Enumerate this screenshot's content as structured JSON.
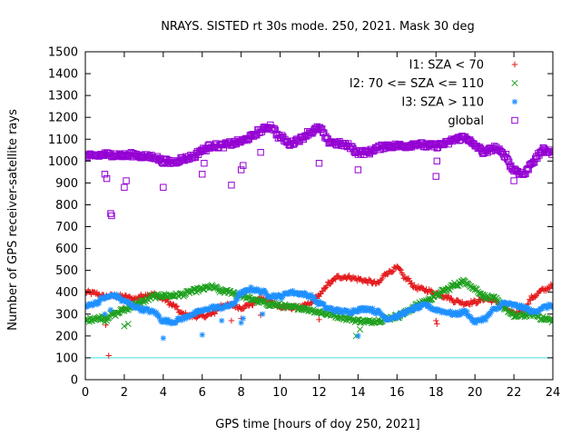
{
  "chart_data": {
    "type": "scatter",
    "title": "NRAYS. SISTED rt 30s mode. 250, 2021. Mask 30 deg",
    "xlabel": "GPS time [hours of doy 250, 2021]",
    "ylabel": "Number of GPS receiver-satellite rays",
    "xlim": [
      0,
      24
    ],
    "ylim": [
      0,
      1500
    ],
    "x_ticks": [
      "0",
      "2",
      "4",
      "6",
      "8",
      "10",
      "12",
      "14",
      "16",
      "18",
      "20",
      "22",
      "24"
    ],
    "y_ticks": [
      "0",
      "100",
      "200",
      "300",
      "400",
      "500",
      "600",
      "700",
      "800",
      "900",
      "1000",
      "1100",
      "1200",
      "1300",
      "1400",
      "1500"
    ],
    "x_tick_values": [
      0,
      2,
      4,
      6,
      8,
      10,
      12,
      14,
      16,
      18,
      20,
      22,
      24
    ],
    "y_tick_values": [
      0,
      100,
      200,
      300,
      400,
      500,
      600,
      700,
      800,
      900,
      1000,
      1100,
      1200,
      1300,
      1400,
      1500
    ],
    "reference_line": {
      "y": 100,
      "color": "#40e0e0"
    },
    "legend_position": "top-right",
    "series": [
      {
        "name": "I1: SZA < 70",
        "marker": "plus",
        "color": "#e41a1c",
        "x": [
          0,
          0.5,
          1,
          1.5,
          2,
          2.5,
          3,
          3.5,
          4,
          4.5,
          5,
          5.5,
          6,
          6.5,
          7,
          7.5,
          8,
          8.5,
          9,
          9.5,
          10,
          10.5,
          11,
          11.5,
          12,
          12.5,
          13,
          13.5,
          14,
          14.5,
          15,
          15.5,
          16,
          16.5,
          17,
          17.5,
          18,
          18.5,
          19,
          19.5,
          20,
          20.5,
          21,
          21.5,
          22,
          22.5,
          23,
          23.5,
          24
        ],
        "y": [
          400,
          395,
          380,
          385,
          380,
          370,
          385,
          390,
          370,
          340,
          300,
          290,
          290,
          300,
          340,
          340,
          330,
          345,
          370,
          360,
          330,
          330,
          330,
          345,
          385,
          440,
          470,
          470,
          460,
          450,
          440,
          490,
          510,
          460,
          420,
          410,
          395,
          380,
          360,
          350,
          355,
          370,
          360,
          330,
          300,
          320,
          380,
          410,
          430
        ],
        "outliers": [
          [
            1.05,
            250
          ],
          [
            1.2,
            110
          ],
          [
            1.95,
            330
          ],
          [
            3.2,
            390
          ],
          [
            7.5,
            270
          ],
          [
            8.0,
            280
          ],
          [
            9.0,
            295
          ],
          [
            12.0,
            275
          ],
          [
            18.0,
            270
          ],
          [
            18.05,
            255
          ],
          [
            20.7,
            300
          ],
          [
            22.0,
            305
          ]
        ]
      },
      {
        "name": "I2: 70 <= SZA <= 110",
        "marker": "cross",
        "color": "#1ea01e",
        "x": [
          0,
          0.5,
          1,
          1.5,
          2,
          2.5,
          3,
          3.5,
          4,
          4.5,
          5,
          5.5,
          6,
          6.5,
          7,
          7.5,
          8,
          8.5,
          9,
          9.5,
          10,
          10.5,
          11,
          11.5,
          12,
          12.5,
          13,
          13.5,
          14,
          14.5,
          15,
          15.5,
          16,
          16.5,
          17,
          17.5,
          18,
          18.5,
          19,
          19.5,
          20,
          20.5,
          21,
          21.5,
          22,
          22.5,
          23,
          23.5,
          24
        ],
        "y": [
          270,
          280,
          285,
          300,
          320,
          340,
          360,
          380,
          385,
          385,
          390,
          405,
          415,
          425,
          405,
          400,
          385,
          370,
          355,
          345,
          340,
          330,
          330,
          320,
          310,
          300,
          290,
          280,
          270,
          265,
          270,
          280,
          290,
          310,
          340,
          360,
          385,
          410,
          435,
          450,
          415,
          380,
          370,
          330,
          290,
          295,
          300,
          280,
          270
        ],
        "outliers": [
          [
            1.0,
            265
          ],
          [
            1.1,
            270
          ],
          [
            2.0,
            245
          ],
          [
            2.2,
            255
          ],
          [
            13.9,
            200
          ],
          [
            14.1,
            230
          ],
          [
            22.1,
            290
          ]
        ]
      },
      {
        "name": "I3: SZA > 110",
        "marker": "star",
        "color": "#1e90ff",
        "x": [
          0,
          0.5,
          1,
          1.5,
          2,
          2.5,
          3,
          3.5,
          4,
          4.5,
          5,
          5.5,
          6,
          6.5,
          7,
          7.5,
          8,
          8.5,
          9,
          9.5,
          10,
          10.5,
          11,
          11.5,
          12,
          12.5,
          13,
          13.5,
          14,
          14.5,
          15,
          15.5,
          16,
          16.5,
          17,
          17.5,
          18,
          18.5,
          19,
          19.5,
          20,
          20.5,
          21,
          21.5,
          22,
          22.5,
          23,
          23.5,
          24
        ],
        "y": [
          335,
          350,
          375,
          385,
          360,
          335,
          320,
          310,
          270,
          265,
          280,
          300,
          315,
          330,
          330,
          340,
          395,
          415,
          405,
          385,
          380,
          400,
          395,
          385,
          350,
          325,
          315,
          310,
          320,
          325,
          310,
          280,
          290,
          310,
          330,
          340,
          320,
          310,
          300,
          310,
          265,
          280,
          320,
          350,
          340,
          330,
          310,
          330,
          340
        ],
        "outliers": [
          [
            1.0,
            300
          ],
          [
            1.3,
            320
          ],
          [
            4.0,
            190
          ],
          [
            6.0,
            205
          ],
          [
            7.0,
            270
          ],
          [
            8.0,
            260
          ],
          [
            8.1,
            280
          ],
          [
            9.1,
            300
          ],
          [
            14.0,
            200
          ]
        ]
      },
      {
        "name": "global",
        "marker": "square",
        "color": "#9400d3",
        "x": [
          0,
          0.5,
          1,
          1.5,
          2,
          2.5,
          3,
          3.5,
          4,
          4.5,
          5,
          5.5,
          6,
          6.5,
          7,
          7.5,
          8,
          8.5,
          9,
          9.5,
          10,
          10.5,
          11,
          11.5,
          12,
          12.5,
          13,
          13.5,
          14,
          14.5,
          15,
          15.5,
          16,
          16.5,
          17,
          17.5,
          18,
          18.5,
          19,
          19.5,
          20,
          20.5,
          21,
          21.5,
          22,
          22.5,
          23,
          23.5,
          24
        ],
        "y": [
          1020,
          1025,
          1030,
          1030,
          1025,
          1030,
          1020,
          1020,
          1000,
          995,
          1010,
          1020,
          1050,
          1070,
          1070,
          1080,
          1090,
          1110,
          1140,
          1160,
          1110,
          1080,
          1100,
          1130,
          1150,
          1090,
          1080,
          1070,
          1040,
          1040,
          1060,
          1070,
          1070,
          1070,
          1080,
          1070,
          1070,
          1080,
          1100,
          1110,
          1070,
          1040,
          1060,
          1030,
          960,
          940,
          1000,
          1050,
          1040
        ],
        "outliers": [
          [
            1.0,
            940
          ],
          [
            1.1,
            920
          ],
          [
            1.3,
            760
          ],
          [
            1.35,
            750
          ],
          [
            2.0,
            880
          ],
          [
            2.1,
            910
          ],
          [
            4.0,
            880
          ],
          [
            6.0,
            940
          ],
          [
            6.1,
            990
          ],
          [
            7.5,
            890
          ],
          [
            8.0,
            960
          ],
          [
            8.1,
            980
          ],
          [
            9.0,
            1040
          ],
          [
            12.0,
            990
          ],
          [
            14.0,
            960
          ],
          [
            18.0,
            930
          ],
          [
            18.05,
            1000
          ],
          [
            22.0,
            910
          ]
        ]
      }
    ]
  }
}
